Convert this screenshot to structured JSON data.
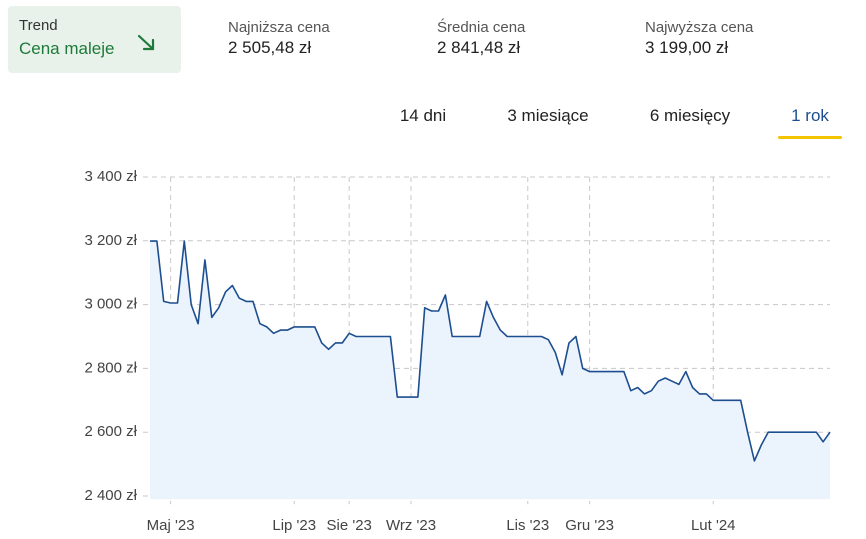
{
  "header": {
    "trend": {
      "label": "Trend",
      "value": "Cena maleje"
    },
    "stats": [
      {
        "label": "Najniższa cena",
        "value": "2 505,48 zł"
      },
      {
        "label": "Średnia cena",
        "value": "2 841,48 zł"
      },
      {
        "label": "Najwyższa cena",
        "value": "3 199,00 zł"
      }
    ],
    "tabs": [
      "14 dni",
      "3 miesiące",
      "6 miesięcy",
      "1 rok"
    ],
    "active_tab": 3
  },
  "chart_data": {
    "type": "area-line",
    "color": "#1d4e8f",
    "fill": "#ebf3fd",
    "grid": true,
    "categories": [
      null,
      null,
      null,
      "Maj '23",
      null,
      null,
      null,
      null,
      null,
      null,
      null,
      null,
      null,
      null,
      null,
      null,
      null,
      null,
      null,
      null,
      null,
      "Lip '23",
      null,
      null,
      null,
      null,
      null,
      null,
      null,
      "Sie '23",
      null,
      null,
      null,
      null,
      null,
      null,
      null,
      null,
      "Wrz '23",
      null,
      null,
      null,
      null,
      null,
      null,
      null,
      null,
      null,
      null,
      null,
      null,
      null,
      null,
      null,
      null,
      "Lis '23",
      null,
      null,
      null,
      null,
      null,
      null,
      null,
      null,
      "Gru '23",
      null,
      null,
      null,
      null,
      null,
      null,
      null,
      null,
      null,
      null,
      null,
      null,
      null,
      null,
      null,
      null,
      null,
      "Lut '24",
      null,
      null,
      null,
      null,
      null,
      null,
      null,
      null,
      null,
      null,
      null,
      null,
      null,
      null,
      null,
      null,
      null
    ],
    "values": [
      3199,
      3199,
      3010,
      3005,
      3005,
      3199,
      3000,
      2940,
      3140,
      2960,
      2990,
      3040,
      3060,
      3020,
      3010,
      3010,
      2940,
      2930,
      2910,
      2920,
      2920,
      2930,
      2930,
      2930,
      2930,
      2880,
      2860,
      2880,
      2880,
      2910,
      2900,
      2900,
      2900,
      2900,
      2900,
      2900,
      2710,
      2710,
      2710,
      2710,
      2990,
      2980,
      2980,
      3030,
      2900,
      2900,
      2900,
      2900,
      2900,
      3010,
      2960,
      2920,
      2900,
      2900,
      2900,
      2900,
      2900,
      2900,
      2890,
      2850,
      2780,
      2880,
      2900,
      2800,
      2790,
      2790,
      2790,
      2790,
      2790,
      2790,
      2730,
      2740,
      2720,
      2730,
      2760,
      2770,
      2760,
      2750,
      2790,
      2740,
      2720,
      2720,
      2700,
      2700,
      2700,
      2700,
      2700,
      2600,
      2510,
      2560,
      2600,
      2600,
      2600,
      2600,
      2600,
      2600,
      2600,
      2600,
      2570,
      2600
    ],
    "ylim": [
      2390,
      3400
    ],
    "yticks": [
      {
        "value": 2400,
        "label": "2 400 zł"
      },
      {
        "value": 2600,
        "label": "2 600 zł"
      },
      {
        "value": 2800,
        "label": "2 800 zł"
      },
      {
        "value": 3000,
        "label": "3 000 zł"
      },
      {
        "value": 3200,
        "label": "3 200 zł"
      },
      {
        "value": 3400,
        "label": "3 400 zł"
      }
    ]
  }
}
